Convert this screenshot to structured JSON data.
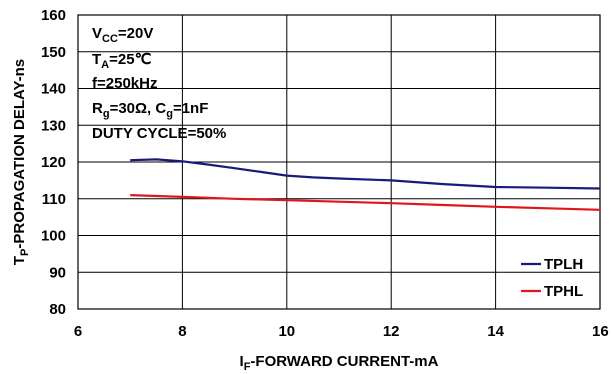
{
  "chart_data": {
    "type": "line",
    "xlabel": {
      "main": "I",
      "sub": "F",
      "rest": "-FORWARD CURRENT-mA"
    },
    "ylabel": {
      "main": "T",
      "sub": "P",
      "rest": "-PROPAGATION DELAY-ns"
    },
    "xlim": [
      6,
      16
    ],
    "ylim": [
      80,
      160
    ],
    "xticks": [
      "6",
      "8",
      "10",
      "12",
      "14",
      "16"
    ],
    "yticks": [
      "80",
      "90",
      "100",
      "110",
      "120",
      "130",
      "140",
      "150",
      "160"
    ],
    "grid": true,
    "legend_position": "bottom-right",
    "conditions": {
      "vcc": {
        "main": "V",
        "sub": "CC",
        "rest": "=20V"
      },
      "ta": {
        "main": "T",
        "sub": "A",
        "rest": "=25℃"
      },
      "freq": "f=250kHz",
      "rg_cg": {
        "r": "R",
        "r_sub": "g",
        "mid": "=30Ω, C",
        "c_sub": "g",
        "rest": "=1nF"
      },
      "duty": "DUTY CYCLE=50%"
    },
    "series": [
      {
        "name": "TPLH",
        "color": "#1a1a7a",
        "x": [
          7,
          7.5,
          8,
          8.5,
          9,
          9.5,
          10,
          10.5,
          11,
          12,
          13,
          14,
          15,
          16
        ],
        "y": [
          120.5,
          120.7,
          120.2,
          119.3,
          118.3,
          117.3,
          116.3,
          115.8,
          115.5,
          115.0,
          114.0,
          113.2,
          113.0,
          112.8
        ]
      },
      {
        "name": "TPHL",
        "color": "#e0161b",
        "x": [
          7,
          8,
          9,
          10,
          11,
          12,
          13,
          14,
          15,
          16
        ],
        "y": [
          111.0,
          110.5,
          110.0,
          109.6,
          109.2,
          108.8,
          108.3,
          107.8,
          107.4,
          107.0
        ]
      }
    ]
  }
}
